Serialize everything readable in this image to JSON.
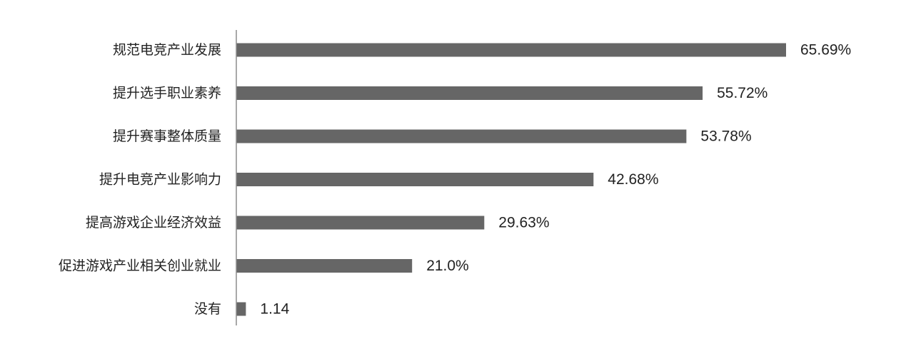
{
  "colors": {
    "bar": "#666666",
    "axis": "#8c8c8c",
    "text": "#222222",
    "background": "#ffffff"
  },
  "chart_data": {
    "type": "bar",
    "orientation": "horizontal",
    "title": "",
    "xlabel": "",
    "ylabel": "",
    "grid": false,
    "legend": "none",
    "xlim": [
      0,
      70
    ],
    "categories": [
      "规范电竞产业发展",
      "提升选手职业素养",
      "提升赛事整体质量",
      "提升电竞产业影响力",
      "提高游戏企业经济效益",
      "促进游戏产业相关创业就业",
      "没有"
    ],
    "values": [
      65.69,
      55.72,
      53.78,
      42.68,
      29.63,
      21.0,
      1.14
    ],
    "value_labels": [
      "65.69%",
      "55.72%",
      "53.78%",
      "42.68%",
      "29.63%",
      "21.0%",
      "1.14"
    ]
  }
}
